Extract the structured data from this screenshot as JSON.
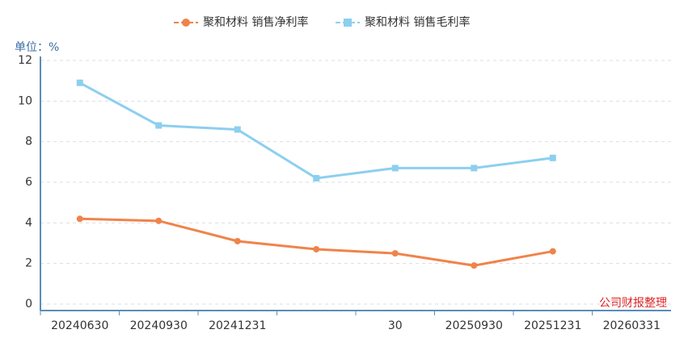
{
  "chart_data": {
    "type": "line",
    "unit_label": "单位：%",
    "source": "公司财报整理",
    "categories": [
      "20240630",
      "20240930",
      "20241231",
      null,
      "30",
      "20250930",
      "20251231",
      "20260331"
    ],
    "series": [
      {
        "name": "聚和材料 销售净利率",
        "color": "#f0834a",
        "marker": "circle",
        "values": [
          4.2,
          4.1,
          3.1,
          2.7,
          2.5,
          1.9,
          2.6,
          null
        ]
      },
      {
        "name": "聚和材料 销售毛利率",
        "color": "#8ccfef",
        "marker": "square",
        "values": [
          10.9,
          8.8,
          8.6,
          6.2,
          6.7,
          6.7,
          7.2,
          null
        ]
      }
    ],
    "ylim": [
      0,
      12
    ],
    "yticks": [
      0,
      2,
      4,
      6,
      8,
      10,
      12
    ],
    "grid": true,
    "legend": "top"
  }
}
